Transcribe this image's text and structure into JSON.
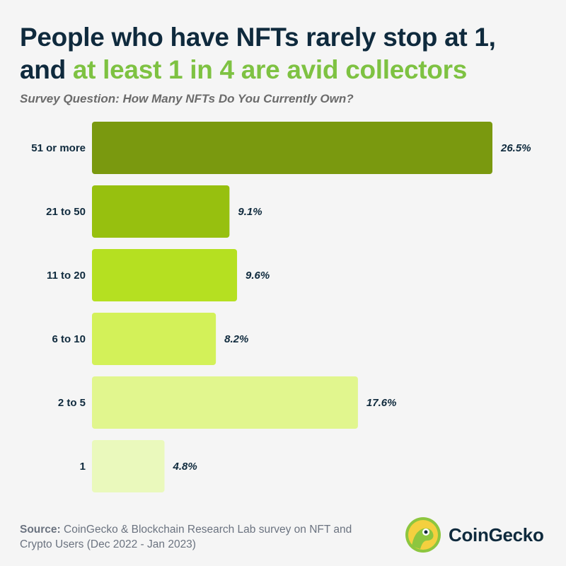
{
  "title": {
    "line1": "People who have NFTs rarely stop at 1,",
    "line2_prefix": "and ",
    "line2_highlight": "at least 1 in 4 are avid collectors"
  },
  "subtitle": "Survey Question: How Many NFTs Do You Currently Own?",
  "chart_data": {
    "type": "bar",
    "orientation": "horizontal",
    "title": "How Many NFTs Do You Currently Own?",
    "categories": [
      "51 or more",
      "21 to 50",
      "11 to 20",
      "6 to 10",
      "2 to 5",
      "1"
    ],
    "values": [
      26.5,
      9.1,
      9.6,
      8.2,
      17.6,
      4.8
    ],
    "value_labels": [
      "26.5%",
      "9.1%",
      "9.6%",
      "8.2%",
      "17.6%",
      "4.8%"
    ],
    "colors": [
      "#7a990f",
      "#97c00f",
      "#b5e021",
      "#d3f159",
      "#e1f68e",
      "#eaf9bc"
    ],
    "xlabel": "",
    "ylabel": "",
    "xlim": [
      0,
      26.5
    ]
  },
  "source": {
    "label": "Source:",
    "text": " CoinGecko & Blockchain Research Lab survey on NFT and Crypto Users (Dec 2022 - Jan 2023)"
  },
  "brand": {
    "name": "CoinGecko"
  }
}
